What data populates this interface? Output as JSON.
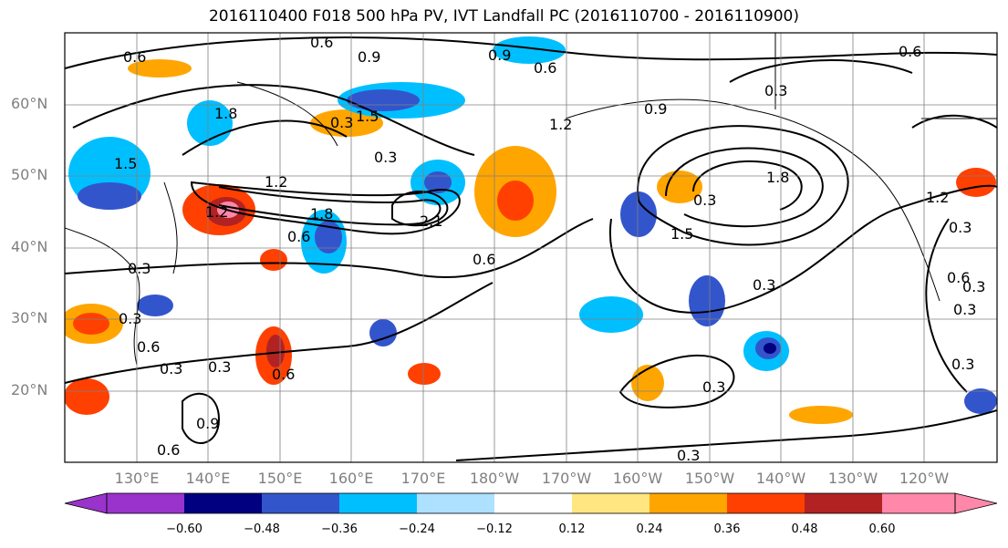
{
  "title": "2016110400 F018 500 hPa PV, IVT Landfall PC (2016110700 - 2016110900)",
  "lat_labels": [
    "60°N",
    "50°N",
    "40°N",
    "30°N",
    "20°N"
  ],
  "lon_labels": [
    "130°E",
    "140°E",
    "150°E",
    "160°E",
    "170°E",
    "180°W",
    "170°W",
    "160°W",
    "150°W",
    "140°W",
    "130°W",
    "120°W"
  ],
  "colorbar": {
    "ticks": [
      "−0.60",
      "−0.48",
      "−0.36",
      "−0.24",
      "−0.12",
      "0.12",
      "0.24",
      "0.36",
      "0.48",
      "0.60"
    ],
    "colors": [
      "#9933cc",
      "#000080",
      "#3355cc",
      "#00bfff",
      "#aee0ff",
      "#ffffff",
      "#ffe680",
      "#ffa500",
      "#ff4000",
      "#b22222",
      "#ff88aa",
      "#ff88aa"
    ]
  },
  "contour_labels": [
    "0.6",
    "0.6",
    "0.9",
    "0.9",
    "0.6",
    "0.6",
    "1.8",
    "0.3",
    "1.5",
    "0.3",
    "1.2",
    "0.9",
    "1.5",
    "0.3",
    "1.2",
    "1.8",
    "1.2",
    "1.5",
    "2.1",
    "0.6",
    "1.8",
    "1.2",
    "0.6",
    "0.3",
    "0.3",
    "0.3",
    "0.6",
    "0.6",
    "0.3",
    "0.3",
    "0.6",
    "0.3",
    "0.3",
    "0.3",
    "0.9",
    "0.3",
    "0.3",
    "0.3",
    "0.3",
    "0.6"
  ]
}
